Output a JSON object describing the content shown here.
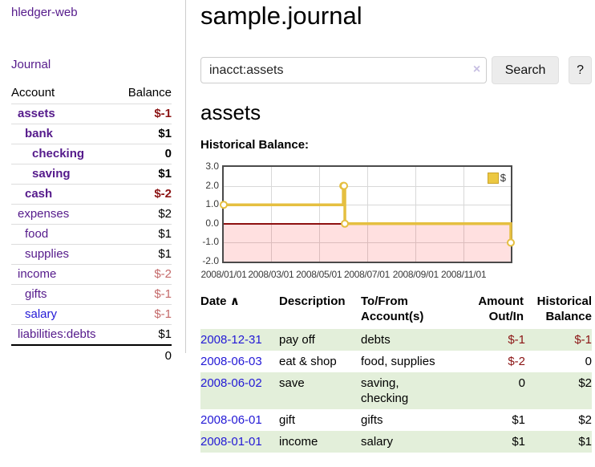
{
  "app": {
    "brand": "hledger-web",
    "nav_journal": "Journal"
  },
  "colors": {
    "link_purple": "#551a8b",
    "link_blue": "#2319d6",
    "negative_strong": "#8b1414",
    "negative_soft": "#c46a6a",
    "row_stripe_green": "#e3efda",
    "chart_line_gold": "#e5bf40",
    "chart_negative_fill": "#fcdcdc",
    "chart_zero_line": "#8e1010",
    "button_gray": "#ececec"
  },
  "sidebar": {
    "table_headers": {
      "account": "Account",
      "balance": "Balance"
    },
    "accounts": [
      {
        "name": "assets",
        "depth": 1,
        "bold": true,
        "color": "purple",
        "balance": "$-1",
        "balance_class": "neg-strong"
      },
      {
        "name": "bank",
        "depth": 2,
        "bold": true,
        "color": "purple",
        "balance": "$1",
        "balance_class": ""
      },
      {
        "name": "checking",
        "depth": 3,
        "bold": true,
        "color": "purple",
        "balance": "0",
        "balance_class": ""
      },
      {
        "name": "saving",
        "depth": 3,
        "bold": true,
        "color": "purple",
        "balance": "$1",
        "balance_class": ""
      },
      {
        "name": "cash",
        "depth": 2,
        "bold": true,
        "color": "purple",
        "balance": "$-2",
        "balance_class": "neg-strong"
      },
      {
        "name": "expenses",
        "depth": 1,
        "bold": false,
        "color": "purple",
        "balance": "$2",
        "balance_class": ""
      },
      {
        "name": "food",
        "depth": 2,
        "bold": false,
        "color": "purple",
        "balance": "$1",
        "balance_class": ""
      },
      {
        "name": "supplies",
        "depth": 2,
        "bold": false,
        "color": "purple",
        "balance": "$1",
        "balance_class": ""
      },
      {
        "name": "income",
        "depth": 1,
        "bold": false,
        "color": "purple",
        "balance": "$-2",
        "balance_class": "neg-soft"
      },
      {
        "name": "gifts",
        "depth": 2,
        "bold": false,
        "color": "purple",
        "balance": "$-1",
        "balance_class": "neg-soft"
      },
      {
        "name": "salary",
        "depth": 2,
        "bold": false,
        "color": "blue",
        "balance": "$-1",
        "balance_class": "neg-soft"
      },
      {
        "name": "liabilities:debts",
        "depth": 1,
        "bold": false,
        "color": "purple",
        "balance": "$1",
        "balance_class": ""
      }
    ],
    "total": "0"
  },
  "main": {
    "title": "sample.journal",
    "search": {
      "value": "inacct:assets",
      "clear_icon": "×",
      "button": "Search",
      "help_button": "?"
    },
    "account_heading": "assets",
    "chart_heading": "Historical Balance:"
  },
  "chart_data": {
    "type": "line",
    "step": true,
    "title": "Historical Balance",
    "ylim": [
      -2,
      3
    ],
    "x_domain_days": [
      0,
      365
    ],
    "yticks": [
      {
        "label": "3.0",
        "value": 3
      },
      {
        "label": "2.0",
        "value": 2
      },
      {
        "label": "1.0",
        "value": 1
      },
      {
        "label": "0.0",
        "value": 0
      },
      {
        "label": "-1.0",
        "value": -1
      },
      {
        "label": "-2.0",
        "value": -2
      }
    ],
    "xticks": [
      {
        "label": "2008/01/01",
        "day": 0
      },
      {
        "label": "2008/03/01",
        "day": 60
      },
      {
        "label": "2008/05/01",
        "day": 121
      },
      {
        "label": "2008/07/01",
        "day": 182
      },
      {
        "label": "2008/09/01",
        "day": 244
      },
      {
        "label": "2008/11/01",
        "day": 305
      }
    ],
    "series": [
      {
        "name": "$",
        "color": "#e5bf40",
        "points": [
          {
            "date": "2008-01-01",
            "day": 0,
            "balance": 1
          },
          {
            "date": "2008-06-01",
            "day": 152,
            "balance": 2
          },
          {
            "date": "2008-06-02",
            "day": 153,
            "balance": 2
          },
          {
            "date": "2008-06-03",
            "day": 154,
            "balance": 0
          },
          {
            "date": "2008-12-31",
            "day": 365,
            "balance": -1
          }
        ]
      }
    ],
    "legend": {
      "position": "top-right",
      "label": "$"
    },
    "grid": true,
    "negative_region_shaded": true
  },
  "register": {
    "headers": {
      "date": "Date",
      "sort_indicator": "∧",
      "description": "Description",
      "account": "To/From Account(s)",
      "amount": "Amount Out/In",
      "balance": "Historical Balance"
    },
    "rows": [
      {
        "date": "2008-12-31",
        "description": "pay off",
        "accounts": "debts",
        "amount": "$-1",
        "amount_neg": true,
        "balance": "$-1",
        "balance_neg": true
      },
      {
        "date": "2008-06-03",
        "description": "eat & shop",
        "accounts": "food, supplies",
        "amount": "$-2",
        "amount_neg": true,
        "balance": "0",
        "balance_neg": false
      },
      {
        "date": "2008-06-02",
        "description": "save",
        "accounts": "saving, checking",
        "amount": "0",
        "amount_neg": false,
        "balance": "$2",
        "balance_neg": false
      },
      {
        "date": "2008-06-01",
        "description": "gift",
        "accounts": "gifts",
        "amount": "$1",
        "amount_neg": false,
        "balance": "$2",
        "balance_neg": false
      },
      {
        "date": "2008-01-01",
        "description": "income",
        "accounts": "salary",
        "amount": "$1",
        "amount_neg": false,
        "balance": "$1",
        "balance_neg": false
      }
    ]
  }
}
